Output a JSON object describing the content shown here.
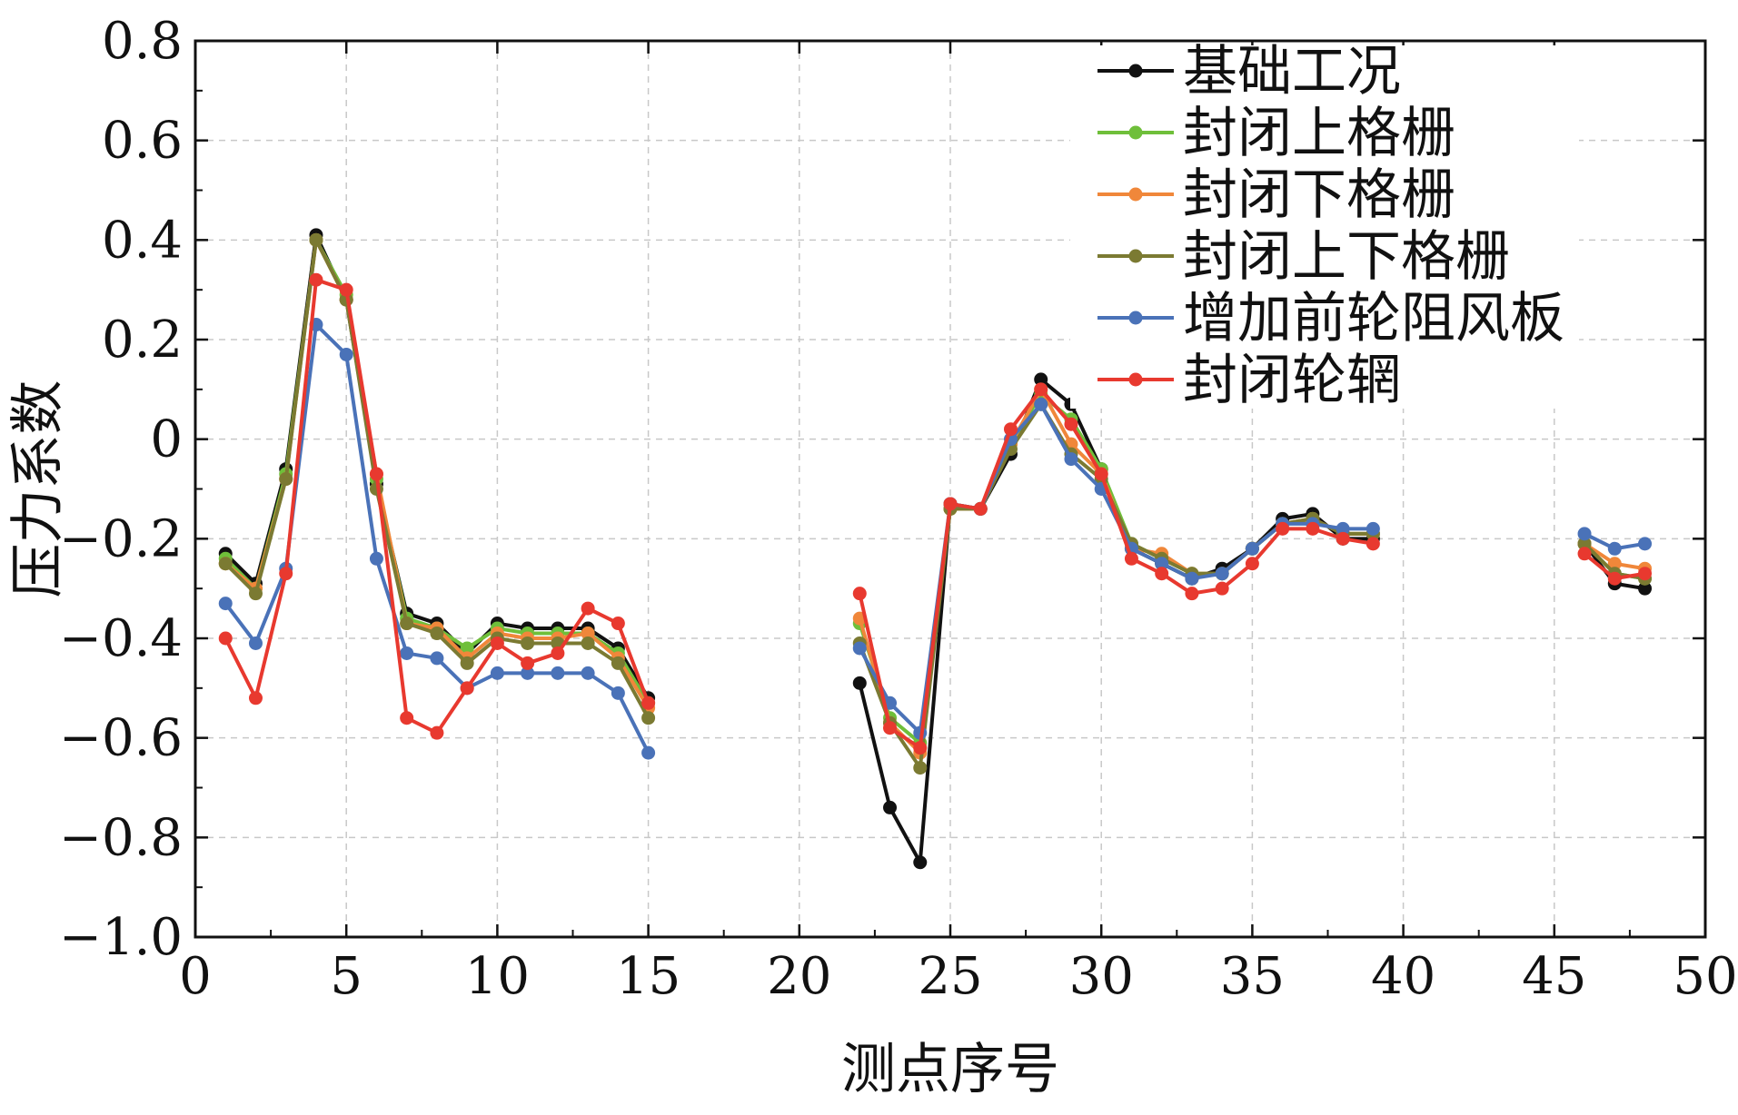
{
  "chart_data": {
    "type": "line",
    "xlabel": "测点序号",
    "ylabel": "压力系数",
    "xlim": [
      0,
      50
    ],
    "ylim": [
      -1.0,
      0.8
    ],
    "xticks": [
      0,
      5,
      10,
      15,
      20,
      25,
      30,
      35,
      40,
      45,
      50
    ],
    "xtick_labels": [
      "0",
      "5",
      "10",
      "15",
      "20",
      "25",
      "30",
      "35",
      "40",
      "45",
      "50"
    ],
    "yticks": [
      -1.0,
      -0.8,
      -0.6,
      -0.4,
      -0.2,
      0,
      0.2,
      0.4,
      0.6,
      0.8
    ],
    "ytick_labels": [
      "−1.0",
      "−0.8",
      "−0.6",
      "−0.4",
      "−0.2",
      "0",
      "0.2",
      "0.4",
      "0.6",
      "0.8"
    ],
    "grid": true,
    "legend_position": "top-right",
    "x": [
      1,
      2,
      3,
      4,
      5,
      6,
      7,
      8,
      9,
      10,
      11,
      12,
      13,
      14,
      15,
      16,
      17,
      18,
      19,
      20,
      21,
      22,
      23,
      24,
      25,
      26,
      27,
      28,
      29,
      30,
      31,
      32,
      33,
      34,
      35,
      36,
      37,
      38,
      39,
      40,
      41,
      42,
      43,
      44,
      45,
      46,
      47,
      48
    ],
    "series": [
      {
        "name": "基础工况",
        "color": "#111111",
        "values": [
          -0.23,
          -0.29,
          -0.06,
          0.41,
          0.28,
          -0.09,
          -0.35,
          -0.37,
          -0.43,
          -0.37,
          -0.38,
          -0.38,
          -0.38,
          -0.42,
          -0.52,
          null,
          null,
          null,
          null,
          null,
          null,
          -0.49,
          -0.74,
          -0.85,
          -0.13,
          -0.14,
          -0.03,
          0.12,
          0.07,
          -0.06,
          -0.22,
          -0.25,
          -0.28,
          -0.26,
          -0.22,
          -0.16,
          -0.15,
          -0.2,
          -0.2,
          null,
          null,
          null,
          null,
          null,
          null,
          -0.21,
          -0.29,
          -0.3
        ]
      },
      {
        "name": "封闭上格栅",
        "color": "#6fbf3a",
        "values": [
          -0.24,
          -0.3,
          -0.07,
          0.4,
          0.29,
          -0.08,
          -0.36,
          -0.38,
          -0.42,
          -0.38,
          -0.39,
          -0.39,
          -0.39,
          -0.43,
          -0.53,
          null,
          null,
          null,
          null,
          null,
          null,
          -0.37,
          -0.56,
          -0.61,
          -0.14,
          -0.14,
          -0.01,
          0.09,
          0.04,
          -0.06,
          -0.21,
          -0.24,
          -0.27,
          -0.27,
          -0.22,
          -0.17,
          -0.16,
          -0.19,
          -0.19,
          null,
          null,
          null,
          null,
          null,
          null,
          -0.21,
          -0.27,
          -0.28
        ]
      },
      {
        "name": "封闭下格栅",
        "color": "#f0873a",
        "values": [
          -0.25,
          -0.3,
          -0.08,
          0.4,
          0.28,
          -0.07,
          -0.37,
          -0.38,
          -0.44,
          -0.39,
          -0.4,
          -0.4,
          -0.39,
          -0.44,
          -0.54,
          null,
          null,
          null,
          null,
          null,
          null,
          -0.36,
          -0.57,
          -0.63,
          -0.14,
          -0.14,
          -0.01,
          0.1,
          -0.01,
          -0.07,
          -0.22,
          -0.23,
          -0.27,
          -0.27,
          -0.22,
          -0.17,
          -0.16,
          -0.19,
          -0.19,
          null,
          null,
          null,
          null,
          null,
          null,
          -0.21,
          -0.25,
          -0.26
        ]
      },
      {
        "name": "封闭上下格栅",
        "color": "#7b7a32",
        "values": [
          -0.25,
          -0.31,
          -0.08,
          0.4,
          0.28,
          -0.1,
          -0.37,
          -0.39,
          -0.45,
          -0.4,
          -0.41,
          -0.41,
          -0.41,
          -0.45,
          -0.56,
          null,
          null,
          null,
          null,
          null,
          null,
          -0.41,
          -0.57,
          -0.66,
          -0.14,
          -0.14,
          -0.02,
          0.07,
          -0.03,
          -0.08,
          -0.21,
          -0.24,
          -0.27,
          -0.27,
          -0.22,
          -0.17,
          -0.16,
          -0.19,
          -0.19,
          null,
          null,
          null,
          null,
          null,
          null,
          -0.21,
          -0.27,
          -0.28
        ]
      },
      {
        "name": "增加前轮阻风板",
        "color": "#4a72b8",
        "values": [
          -0.33,
          -0.41,
          -0.26,
          0.23,
          0.17,
          -0.24,
          -0.43,
          -0.44,
          -0.5,
          -0.47,
          -0.47,
          -0.47,
          -0.47,
          -0.51,
          -0.63,
          null,
          null,
          null,
          null,
          null,
          null,
          -0.42,
          -0.53,
          -0.59,
          -0.13,
          -0.14,
          0.0,
          0.07,
          -0.04,
          -0.1,
          -0.22,
          -0.25,
          -0.28,
          -0.27,
          -0.22,
          -0.17,
          -0.17,
          -0.18,
          -0.18,
          null,
          null,
          null,
          null,
          null,
          null,
          -0.19,
          -0.22,
          -0.21
        ]
      },
      {
        "name": "封闭轮辋",
        "color": "#e8392f",
        "values": [
          -0.4,
          -0.52,
          -0.27,
          0.32,
          0.3,
          -0.07,
          -0.56,
          -0.59,
          -0.5,
          -0.41,
          -0.45,
          -0.43,
          -0.34,
          -0.37,
          -0.53,
          null,
          null,
          null,
          null,
          null,
          null,
          -0.31,
          -0.58,
          -0.62,
          -0.13,
          -0.14,
          0.02,
          0.1,
          0.03,
          -0.07,
          -0.24,
          -0.27,
          -0.31,
          -0.3,
          -0.25,
          -0.18,
          -0.18,
          -0.2,
          -0.21,
          null,
          null,
          null,
          null,
          null,
          null,
          -0.23,
          -0.28,
          -0.27
        ]
      }
    ]
  }
}
